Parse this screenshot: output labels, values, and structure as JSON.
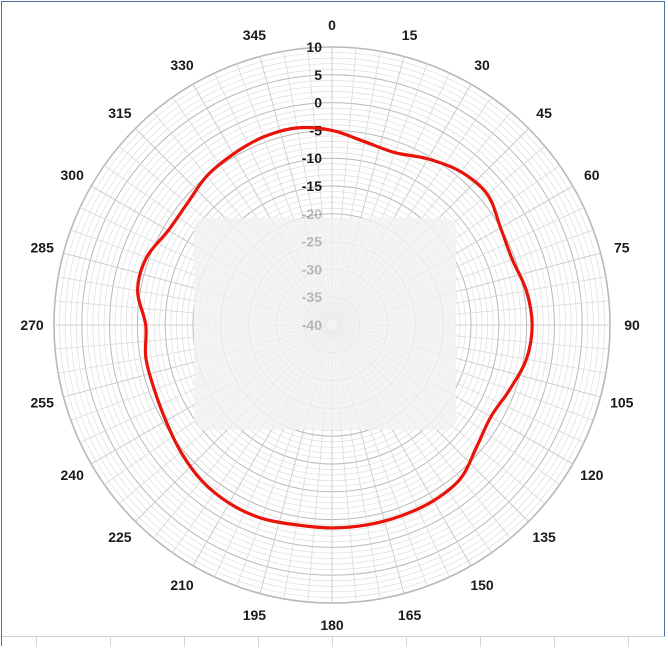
{
  "chart_data": {
    "type": "line",
    "subtype": "polar",
    "title": "",
    "angle_labels": [
      "0",
      "15",
      "30",
      "45",
      "60",
      "75",
      "90",
      "105",
      "120",
      "135",
      "150",
      "165",
      "180",
      "195",
      "210",
      "225",
      "240",
      "255",
      "270",
      "285",
      "300",
      "315",
      "330",
      "345"
    ],
    "radial_labels": [
      "10",
      "5",
      "0",
      "-5",
      "-10",
      "-15",
      "-20",
      "-25",
      "-30",
      "-35",
      "-40"
    ],
    "rlim": [
      -40,
      10
    ],
    "grid": true,
    "series": [
      {
        "color": "#e8140c",
        "points": [
          {
            "angle": 0,
            "value": -5
          },
          {
            "angle": 10,
            "value": -6.5
          },
          {
            "angle": 20,
            "value": -7
          },
          {
            "angle": 30,
            "value": -5.5
          },
          {
            "angle": 40,
            "value": -4
          },
          {
            "angle": 50,
            "value": -3.5
          },
          {
            "angle": 60,
            "value": -5
          },
          {
            "angle": 70,
            "value": -5.5
          },
          {
            "angle": 80,
            "value": -4.5
          },
          {
            "angle": 90,
            "value": -4
          },
          {
            "angle": 100,
            "value": -4.5
          },
          {
            "angle": 110,
            "value": -6
          },
          {
            "angle": 120,
            "value": -7
          },
          {
            "angle": 130,
            "value": -6
          },
          {
            "angle": 140,
            "value": -4
          },
          {
            "angle": 150,
            "value": -3.5
          },
          {
            "angle": 160,
            "value": -3.5
          },
          {
            "angle": 170,
            "value": -3.5
          },
          {
            "angle": 180,
            "value": -3.5
          },
          {
            "angle": 190,
            "value": -3.5
          },
          {
            "angle": 200,
            "value": -3
          },
          {
            "angle": 210,
            "value": -3
          },
          {
            "angle": 220,
            "value": -3.5
          },
          {
            "angle": 230,
            "value": -4.5
          },
          {
            "angle": 240,
            "value": -5.5
          },
          {
            "angle": 250,
            "value": -6
          },
          {
            "angle": 260,
            "value": -6
          },
          {
            "angle": 270,
            "value": -6.5
          },
          {
            "angle": 280,
            "value": -4.5
          },
          {
            "angle": 290,
            "value": -4.5
          },
          {
            "angle": 300,
            "value": -6
          },
          {
            "angle": 310,
            "value": -6
          },
          {
            "angle": 320,
            "value": -5
          },
          {
            "angle": 330,
            "value": -4.5
          },
          {
            "angle": 340,
            "value": -4
          },
          {
            "angle": 350,
            "value": -4
          }
        ]
      }
    ],
    "center_overlay_color": "#f2f2f2"
  }
}
